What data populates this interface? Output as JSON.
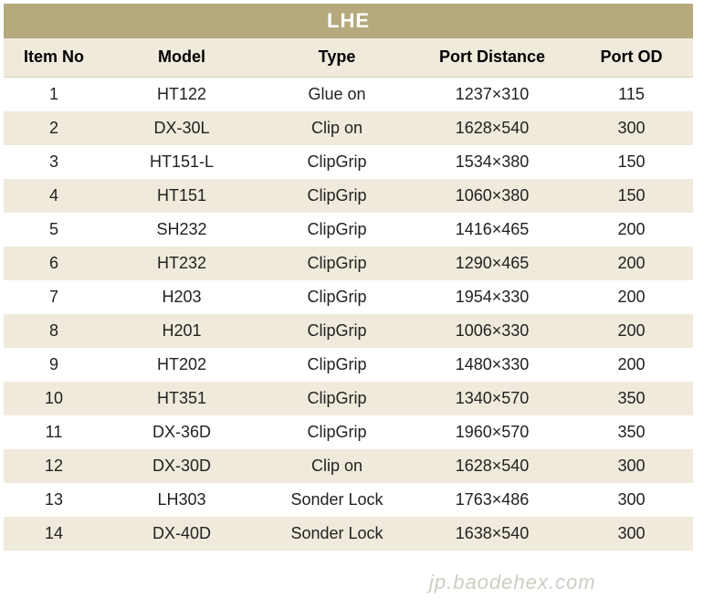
{
  "title": "LHE",
  "columns": [
    "Item No",
    "Model",
    "Type",
    "Port Distance",
    "Port OD"
  ],
  "rows": [
    [
      "1",
      "HT122",
      "Glue on",
      "1237×310",
      "115"
    ],
    [
      "2",
      "DX-30L",
      "Clip on",
      "1628×540",
      "300"
    ],
    [
      "3",
      "HT151-L",
      "ClipGrip",
      "1534×380",
      "150"
    ],
    [
      "4",
      "HT151",
      "ClipGrip",
      "1060×380",
      "150"
    ],
    [
      "5",
      "SH232",
      "ClipGrip",
      "1416×465",
      "200"
    ],
    [
      "6",
      "HT232",
      "ClipGrip",
      "1290×465",
      "200"
    ],
    [
      "7",
      "H203",
      "ClipGrip",
      "1954×330",
      "200"
    ],
    [
      "8",
      "H201",
      "ClipGrip",
      "1006×330",
      "200"
    ],
    [
      "9",
      "HT202",
      "ClipGrip",
      "1480×330",
      "200"
    ],
    [
      "10",
      "HT351",
      "ClipGrip",
      "1340×570",
      "350"
    ],
    [
      "11",
      "DX-36D",
      "ClipGrip",
      "1960×570",
      "350"
    ],
    [
      "12",
      "DX-30D",
      "Clip on",
      "1628×540",
      "300"
    ],
    [
      "13",
      "LH303",
      "Sonder Lock",
      "1763×486",
      "300"
    ],
    [
      "14",
      "DX-40D",
      "Sonder Lock",
      "1638×540",
      "300"
    ]
  ],
  "colors": {
    "title_bg": "#b5a97d",
    "title_fg": "#ffffff",
    "band_bg": "#efeadb",
    "row_bg": "#ffffff",
    "text": "#222222"
  },
  "watermark": "jp.baodehex.com"
}
